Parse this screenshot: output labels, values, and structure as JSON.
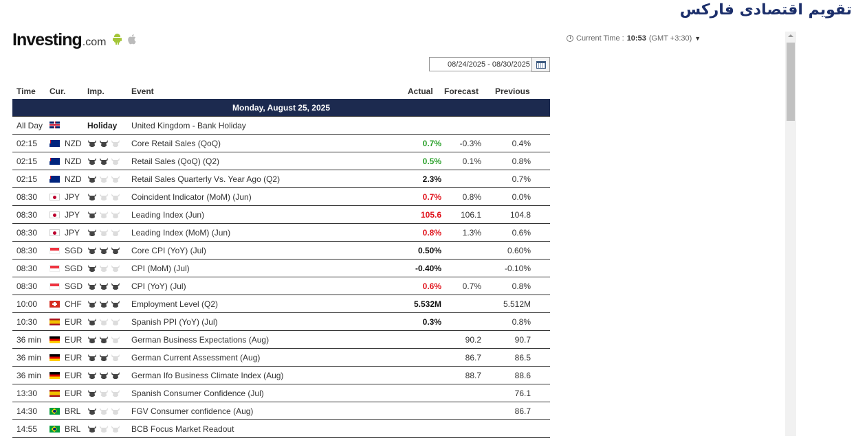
{
  "page_title": "تقویم اقتصادی فارکس",
  "logo": {
    "main": "Investing",
    "suffix": ".com"
  },
  "current_time": {
    "label": "Current Time :",
    "value": "10:53",
    "tz": "(GMT +3:30)"
  },
  "date_range": "08/24/2025 - 08/30/2025",
  "table": {
    "headers": {
      "time": "Time",
      "cur": "Cur.",
      "imp": "Imp.",
      "event": "Event",
      "actual": "Actual",
      "forecast": "Forecast",
      "previous": "Previous"
    },
    "day": "Monday, August 25, 2025",
    "holiday": {
      "time": "All Day",
      "flag": "gb",
      "imp": "Holiday",
      "event": "United Kingdom - Bank Holiday"
    },
    "rows": [
      {
        "time": "02:15",
        "flag": "nz",
        "cur": "NZD",
        "imp": 2,
        "event": "Core Retail Sales (QoQ)",
        "actual": "0.7%",
        "color": "green",
        "forecast": "-0.3%",
        "previous": "0.4%"
      },
      {
        "time": "02:15",
        "flag": "nz",
        "cur": "NZD",
        "imp": 2,
        "event": "Retail Sales (QoQ) (Q2)",
        "actual": "0.5%",
        "color": "green",
        "forecast": "0.1%",
        "previous": "0.8%"
      },
      {
        "time": "02:15",
        "flag": "nz",
        "cur": "NZD",
        "imp": 1,
        "event": "Retail Sales Quarterly Vs. Year Ago (Q2)",
        "actual": "2.3%",
        "color": "black",
        "forecast": "",
        "previous": "0.7%"
      },
      {
        "time": "08:30",
        "flag": "jp",
        "cur": "JPY",
        "imp": 1,
        "event": "Coincident Indicator (MoM) (Jun)",
        "actual": "0.7%",
        "color": "red",
        "forecast": "0.8%",
        "previous": "0.0%"
      },
      {
        "time": "08:30",
        "flag": "jp",
        "cur": "JPY",
        "imp": 1,
        "event": "Leading Index (Jun)",
        "actual": "105.6",
        "color": "red",
        "forecast": "106.1",
        "previous": "104.8"
      },
      {
        "time": "08:30",
        "flag": "jp",
        "cur": "JPY",
        "imp": 1,
        "event": "Leading Index (MoM) (Jun)",
        "actual": "0.8%",
        "color": "red",
        "forecast": "1.3%",
        "previous": "0.6%"
      },
      {
        "time": "08:30",
        "flag": "sg",
        "cur": "SGD",
        "imp": 3,
        "event": "Core CPI (YoY) (Jul)",
        "actual": "0.50%",
        "color": "black",
        "forecast": "",
        "previous": "0.60%"
      },
      {
        "time": "08:30",
        "flag": "sg",
        "cur": "SGD",
        "imp": 1,
        "event": "CPI (MoM) (Jul)",
        "actual": "-0.40%",
        "color": "black",
        "forecast": "",
        "previous": "-0.10%"
      },
      {
        "time": "08:30",
        "flag": "sg",
        "cur": "SGD",
        "imp": 3,
        "event": "CPI (YoY) (Jul)",
        "actual": "0.6%",
        "color": "red",
        "forecast": "0.7%",
        "previous": "0.8%"
      },
      {
        "time": "10:00",
        "flag": "ch",
        "cur": "CHF",
        "imp": 3,
        "event": "Employment Level (Q2)",
        "actual": "5.532M",
        "color": "black",
        "forecast": "",
        "previous": "5.512M"
      },
      {
        "time": "10:30",
        "flag": "es",
        "cur": "EUR",
        "imp": 1,
        "event": "Spanish PPI (YoY) (Jul)",
        "actual": "0.3%",
        "color": "black",
        "forecast": "",
        "previous": "0.8%",
        "separator": true
      },
      {
        "time": "36 min",
        "flag": "de",
        "cur": "EUR",
        "imp": 2,
        "event": "German Business Expectations (Aug)",
        "actual": "",
        "color": "black",
        "forecast": "90.2",
        "previous": "90.7"
      },
      {
        "time": "36 min",
        "flag": "de",
        "cur": "EUR",
        "imp": 2,
        "event": "German Current Assessment (Aug)",
        "actual": "",
        "color": "black",
        "forecast": "86.7",
        "previous": "86.5"
      },
      {
        "time": "36 min",
        "flag": "de",
        "cur": "EUR",
        "imp": 3,
        "event": "German Ifo Business Climate Index (Aug)",
        "actual": "",
        "color": "black",
        "forecast": "88.7",
        "previous": "88.6"
      },
      {
        "time": "13:30",
        "flag": "es",
        "cur": "EUR",
        "imp": 1,
        "event": "Spanish Consumer Confidence (Jul)",
        "actual": "",
        "color": "black",
        "forecast": "",
        "previous": "76.1"
      },
      {
        "time": "14:30",
        "flag": "br",
        "cur": "BRL",
        "imp": 1,
        "event": "FGV Consumer confidence (Aug)",
        "actual": "",
        "color": "black",
        "forecast": "",
        "previous": "86.7"
      },
      {
        "time": "14:55",
        "flag": "br",
        "cur": "BRL",
        "imp": 1,
        "event": "BCB Focus Market Readout",
        "actual": "",
        "color": "black",
        "forecast": "",
        "previous": ""
      }
    ]
  },
  "icons": {
    "clock": "clock-icon",
    "calendar": "calendar-icon",
    "bull": "bull-icon",
    "android": "android-icon",
    "apple": "apple-icon"
  },
  "colors": {
    "day_bar": "#1c2a4f",
    "title": "#1c2f6b",
    "positive": "#2aa02a",
    "negative": "#e0121b"
  }
}
